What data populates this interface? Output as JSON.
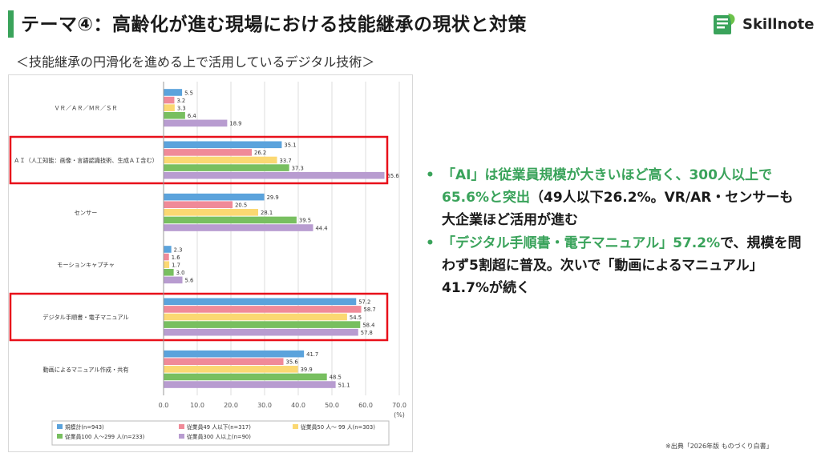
{
  "title": "テーマ④：高齢化が進む現場における技能継承の現状と対策",
  "logo": {
    "text": "Skillnote",
    "icon": "notebook-leaf-icon",
    "color": "#3aa35b"
  },
  "subtitle": "＜技能継承の円滑化を進める上で活用しているデジタル技術＞",
  "bullets": [
    {
      "part1": "「AI」は従業員規模が大きいほど高く、300人以上で65.6%と突出",
      "part2": "（49人以下26.2%。VR/AR・センサーも大企業ほど活用が進む"
    },
    {
      "part1": "「デジタル手順書・電子マニュアル」57.2%",
      "part2": "で、規模を問わず5割超に普及。次いで「動画によるマニュアル」41.7%が続く"
    }
  ],
  "source": "※出典「2026年版 ものづくり白書」",
  "colors": {
    "accent": "#3aa35b",
    "highlight_box": "#e8101a"
  },
  "chart_data": {
    "type": "bar",
    "orientation": "horizontal",
    "categories": [
      "ＶＲ／ＡＲ／ＭＲ／ＳＲ",
      "ＡＩ（人工知能：画像・言語認識技術、生成ＡＩ含む）",
      "センサー",
      "モーションキャプチャ",
      "デジタル手順書・電子マニュアル",
      "動画によるマニュアル作成・共有"
    ],
    "series": [
      {
        "name": "規模計(n=943)",
        "color": "#5ba3dc",
        "values": [
          5.5,
          35.1,
          29.9,
          2.3,
          57.2,
          41.7
        ]
      },
      {
        "name": "従業員49 人以下(n=317)",
        "color": "#f08a98",
        "values": [
          3.2,
          26.2,
          20.5,
          1.6,
          58.7,
          35.6
        ]
      },
      {
        "name": "従業員50 人～ 99 人(n=303)",
        "color": "#fbd872",
        "values": [
          3.3,
          33.7,
          28.1,
          1.7,
          54.5,
          39.9
        ]
      },
      {
        "name": "従業員100 人～299 人(n=233)",
        "color": "#78bf60",
        "values": [
          6.4,
          37.3,
          39.5,
          3.0,
          58.4,
          48.5
        ]
      },
      {
        "name": "従業員300 人以上(n=90)",
        "color": "#b89cd0",
        "values": [
          18.9,
          65.6,
          44.4,
          5.6,
          57.8,
          51.1
        ]
      }
    ],
    "x_ticks": [
      "0.0",
      "10.0",
      "20.0",
      "30.0",
      "40.0",
      "50.0",
      "60.0",
      "70.0"
    ],
    "x_unit": "(%)",
    "xlim": [
      0,
      70
    ],
    "highlighted_categories": [
      1,
      4
    ],
    "legend_position": "bottom",
    "grid": true
  }
}
